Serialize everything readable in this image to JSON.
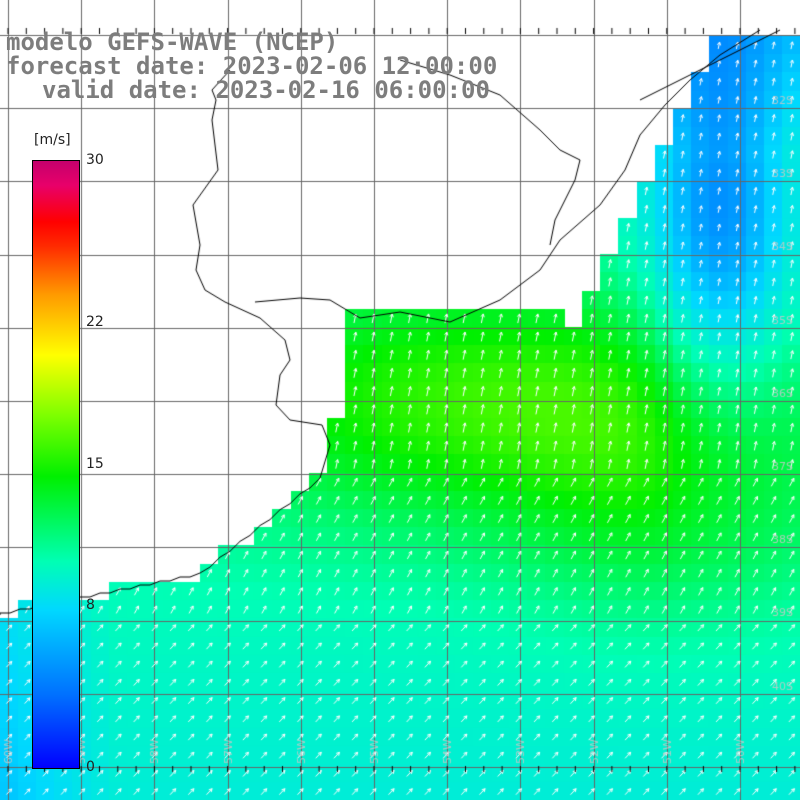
{
  "titles": {
    "model": "modelo GEFS-WAVE (NCEP)",
    "forecast": "forecast date: 2023-02-06 12:00:00",
    "valid": "valid date: 2023-02-16 06:00:00"
  },
  "colorbar": {
    "unit": "[m/s]",
    "min": 0,
    "max": 30,
    "ticks": [
      {
        "value": 30,
        "label": "30"
      },
      {
        "value": 22,
        "label": "22"
      },
      {
        "value": 15,
        "label": "15"
      },
      {
        "value": 8,
        "label": "8"
      },
      {
        "value": 0,
        "label": "0"
      }
    ]
  },
  "grid": {
    "lon_labels": [
      "60W",
      "59W",
      "58W",
      "57W",
      "56W",
      "55W",
      "54W",
      "53W",
      "52W",
      "51W",
      "50W"
    ],
    "lat_labels": [
      "32S",
      "33S",
      "34S",
      "35S",
      "36S",
      "37S",
      "38S",
      "39S",
      "40S"
    ]
  },
  "colors": {
    "land": "#ffffff",
    "coast": "#000000",
    "grid": "#666666",
    "arrows": "#ffffff",
    "title_text": "#7d7d7d"
  }
}
